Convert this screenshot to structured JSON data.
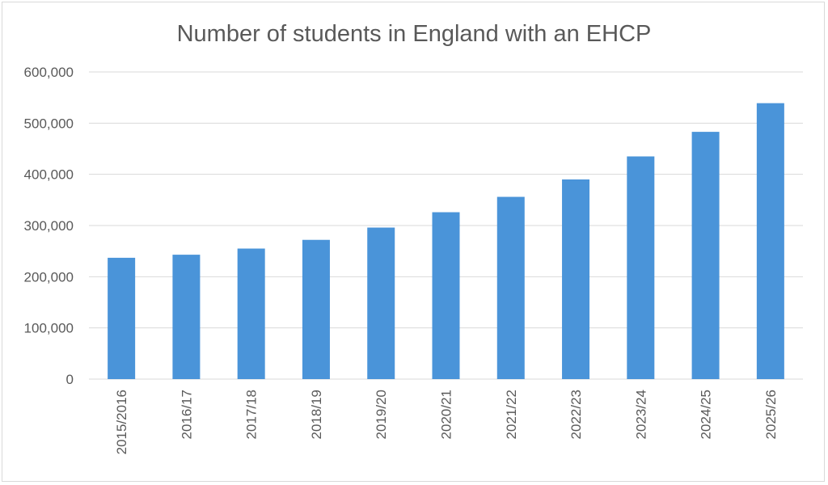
{
  "chart_data": {
    "type": "bar",
    "title": "Number of students in England with an EHCP",
    "xlabel": "",
    "ylabel": "",
    "categories": [
      "2015/2016",
      "2016/17",
      "2017/18",
      "2018/19",
      "2019/20",
      "2020/21",
      "2021/22",
      "2022/23",
      "2023/24",
      "2024/25",
      "2025/26"
    ],
    "values": [
      237000,
      243000,
      255000,
      272000,
      296000,
      326000,
      356000,
      390000,
      435000,
      483000,
      539000
    ],
    "ylim": [
      0,
      600000
    ],
    "yticks": [
      0,
      100000,
      200000,
      300000,
      400000,
      500000,
      600000
    ],
    "ytick_labels": [
      "0",
      "100,000",
      "200,000",
      "300,000",
      "400,000",
      "500,000",
      "600,000"
    ],
    "bar_color": "#4a94d9",
    "grid": true,
    "legend": "none"
  }
}
